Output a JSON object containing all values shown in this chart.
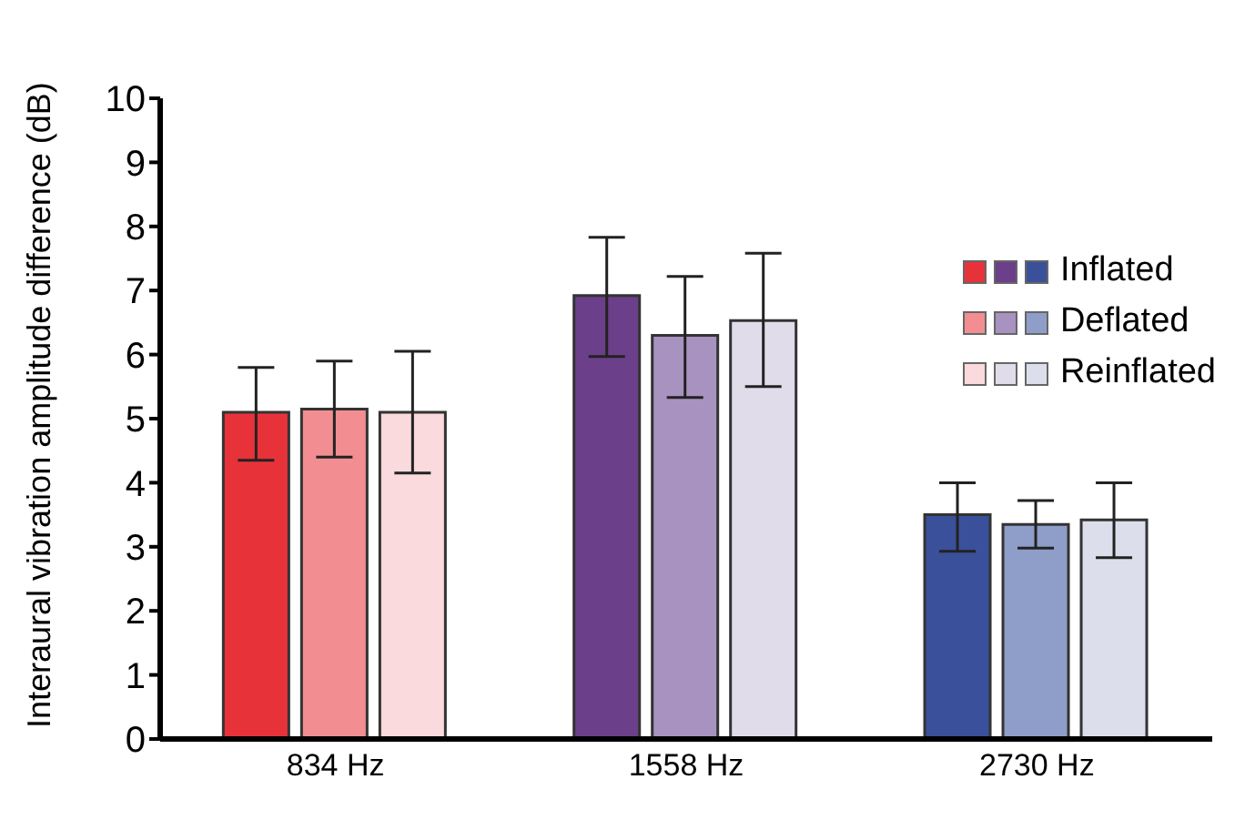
{
  "chart_data": {
    "type": "bar",
    "ylabel": "Interaural vibration amplitude difference (dB)",
    "categories": [
      "834 Hz",
      "1558 Hz",
      "2730 Hz"
    ],
    "series": [
      {
        "name": "Inflated",
        "colors": [
          "#e8323a",
          "#6b3f8a",
          "#3a509a"
        ],
        "values": [
          5.1,
          6.92,
          3.5
        ],
        "errors": [
          [
            4.35,
            5.8
          ],
          [
            5.97,
            7.83
          ],
          [
            2.93,
            4.0
          ]
        ]
      },
      {
        "name": "Deflated",
        "colors": [
          "#f28e92",
          "#a892bf",
          "#8e9ec9"
        ],
        "values": [
          5.15,
          6.3,
          3.35
        ],
        "errors": [
          [
            4.4,
            5.9
          ],
          [
            5.33,
            7.22
          ],
          [
            2.98,
            3.72
          ]
        ]
      },
      {
        "name": "Reinflated",
        "colors": [
          "#fadadc",
          "#e0dcea",
          "#dcdfeb"
        ],
        "values": [
          5.1,
          6.53,
          3.42
        ],
        "errors": [
          [
            4.15,
            6.05
          ],
          [
            5.5,
            7.58
          ],
          [
            2.83,
            4.0
          ]
        ]
      }
    ],
    "ylim": [
      0,
      10
    ],
    "yticks": [
      0,
      1,
      2,
      3,
      4,
      5,
      6,
      7,
      8,
      9,
      10
    ],
    "grid": false,
    "legend": "top right"
  }
}
